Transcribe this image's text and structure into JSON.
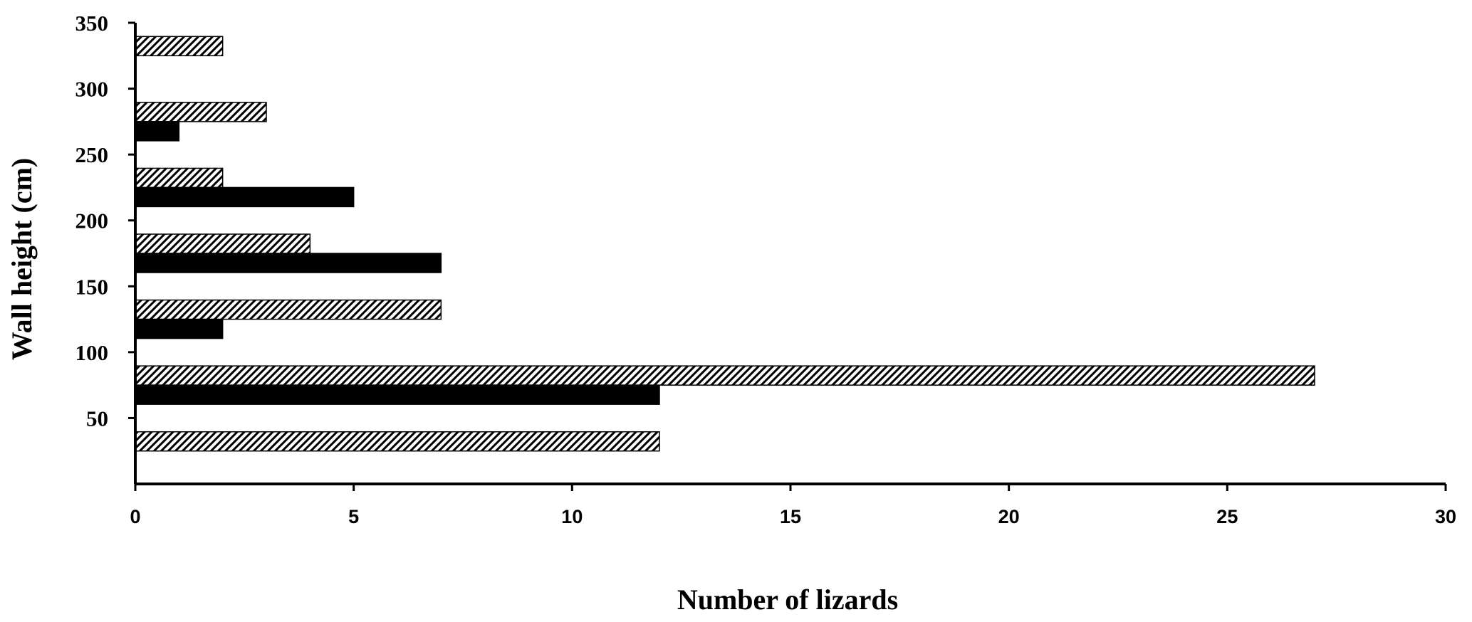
{
  "chart_data": {
    "type": "bar",
    "orientation": "horizontal",
    "title": "",
    "xlabel": "Number of lizards",
    "ylabel": "Wall height (cm)",
    "xlim": [
      0,
      30
    ],
    "ylim": [
      0,
      350
    ],
    "x_ticks": [
      0,
      5,
      10,
      15,
      20,
      25,
      30
    ],
    "y_ticks": [
      50,
      100,
      150,
      200,
      250,
      300,
      350
    ],
    "grid": false,
    "legend": null,
    "series": [
      {
        "pattern": "hatched",
        "color": "#ffffff",
        "points": [
          {
            "y": 25,
            "x": 12
          },
          {
            "y": 75,
            "x": 27
          },
          {
            "y": 125,
            "x": 7
          },
          {
            "y": 175,
            "x": 4
          },
          {
            "y": 225,
            "x": 2
          },
          {
            "y": 275,
            "x": 3
          },
          {
            "y": 325,
            "x": 2
          }
        ]
      },
      {
        "pattern": "solid",
        "color": "#000000",
        "points": [
          {
            "y": 25,
            "x": 0
          },
          {
            "y": 75,
            "x": 12
          },
          {
            "y": 125,
            "x": 2
          },
          {
            "y": 175,
            "x": 7
          },
          {
            "y": 225,
            "x": 5
          },
          {
            "y": 275,
            "x": 1
          },
          {
            "y": 325,
            "x": 0
          }
        ]
      }
    ]
  }
}
